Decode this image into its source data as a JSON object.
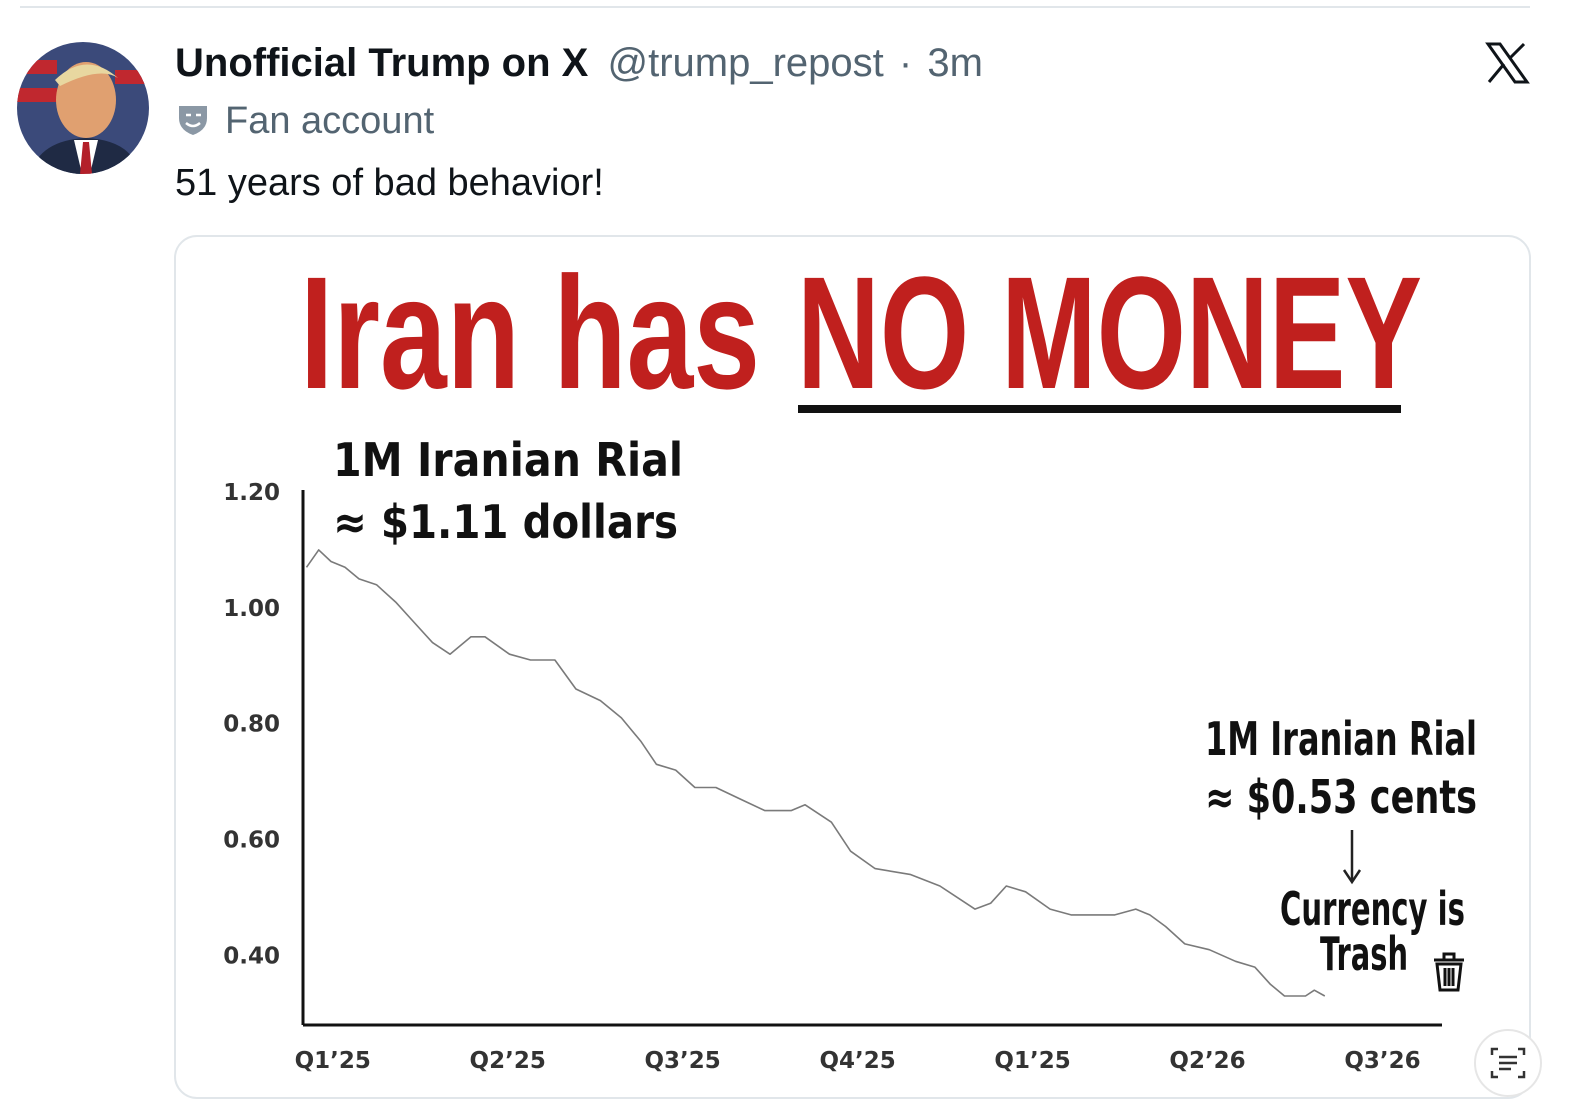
{
  "post": {
    "author": "Unofficial Trump on X",
    "handle": "@trump_repost",
    "separator": "·",
    "time": "3m",
    "badge": "Fan account",
    "text": "51 years of bad behavior!"
  },
  "chart_data": {
    "type": "line",
    "title": "Iran has",
    "title_emphasis": "NO MONEY",
    "annotations": [
      "1M Iranian Rial",
      "≈ $1.11 dollars",
      "1M Iranian Rial",
      "≈ $0.53 cents",
      "Currency is",
      "Trash"
    ],
    "x": [
      -0.15,
      -0.08,
      -0.01,
      0.07,
      0.15,
      0.25,
      0.36,
      0.45,
      0.57,
      0.67,
      0.79,
      0.87,
      1.01,
      1.13,
      1.27,
      1.39,
      1.53,
      1.65,
      1.76,
      1.85,
      1.96,
      2.07,
      2.19,
      2.33,
      2.47,
      2.62,
      2.7,
      2.85,
      2.96,
      3.1,
      3.3,
      3.47,
      3.67,
      3.76,
      3.85,
      3.96,
      4.1,
      4.22,
      4.33,
      4.47,
      4.59,
      4.67,
      4.76,
      4.87,
      5.01,
      5.16,
      5.27,
      5.36,
      5.44,
      5.56,
      5.61,
      5.67
    ],
    "values": [
      1.07,
      1.1,
      1.08,
      1.07,
      1.05,
      1.04,
      1.01,
      0.98,
      0.94,
      0.92,
      0.95,
      0.95,
      0.92,
      0.91,
      0.91,
      0.86,
      0.84,
      0.81,
      0.77,
      0.73,
      0.72,
      0.69,
      0.69,
      0.67,
      0.65,
      0.65,
      0.66,
      0.63,
      0.58,
      0.55,
      0.54,
      0.52,
      0.48,
      0.49,
      0.52,
      0.51,
      0.48,
      0.47,
      0.47,
      0.47,
      0.48,
      0.47,
      0.45,
      0.42,
      0.41,
      0.39,
      0.38,
      0.35,
      0.33,
      0.33,
      0.34,
      0.33
    ],
    "color": "#7a7a7a",
    "xlim": [
      -0.17,
      6.34
    ],
    "xticks": [
      {
        "value": 0,
        "label": "Q1’25"
      },
      {
        "value": 1,
        "label": "Q2’25"
      },
      {
        "value": 2,
        "label": "Q3’25"
      },
      {
        "value": 3,
        "label": "Q4’25"
      },
      {
        "value": 4,
        "label": "Q1’25"
      },
      {
        "value": 5,
        "label": "Q2’26"
      },
      {
        "value": 6,
        "label": "Q3’26"
      }
    ],
    "ylim": [
      0.28,
      1.2
    ],
    "yticks": [
      {
        "value": 1.2,
        "label": "1.20"
      },
      {
        "value": 1.0,
        "label": "1.00"
      },
      {
        "value": 0.8,
        "label": "0.80"
      },
      {
        "value": 0.6,
        "label": "0.60"
      },
      {
        "value": 0.4,
        "label": "0.40"
      }
    ],
    "grid": false
  }
}
